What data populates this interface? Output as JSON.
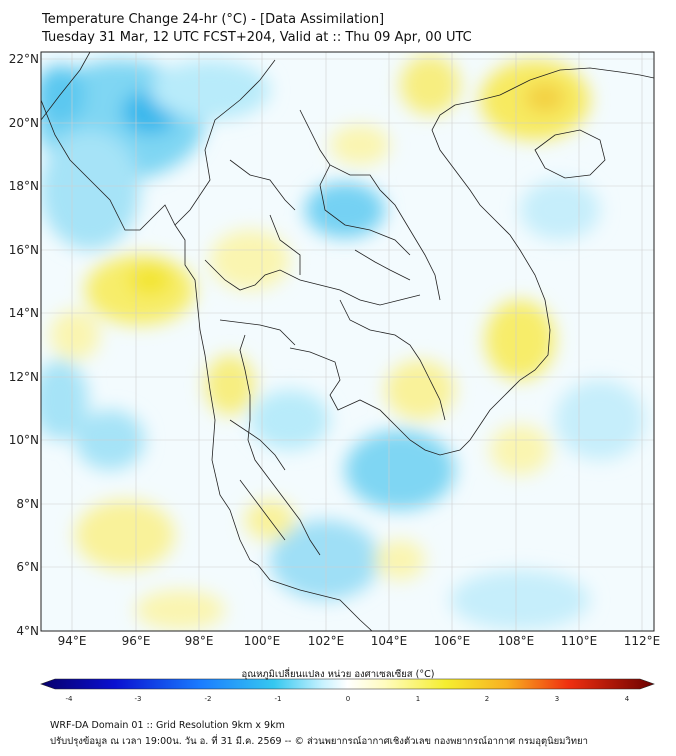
{
  "header": {
    "title_line1": "Temperature Change 24-hr (°C) - [Data Assimilation]",
    "title_line2": "Tuesday 31 Mar, 12 UTC FCST+204, Valid at :: Thu 09 Apr, 00 UTC"
  },
  "axes": {
    "lat_labels": [
      "22°N",
      "20°N",
      "18°N",
      "16°N",
      "14°N",
      "12°N",
      "10°N",
      "8°N",
      "6°N",
      "4°N"
    ],
    "lon_labels": [
      "94°E",
      "96°E",
      "98°E",
      "100°E",
      "102°E",
      "104°E",
      "106°E",
      "108°E",
      "110°E",
      "112°E"
    ]
  },
  "colorbar": {
    "label": "อุณหภูมิเปลี่ยนแปลง หน่วย องศาเซลเซียส (°C)",
    "ticks": [
      "-4",
      "-3",
      "-2",
      "-1",
      "0",
      "1",
      "2",
      "3",
      "4"
    ],
    "colors": {
      "cold_dark": "#08006b",
      "cold": "#1a5cff",
      "cool": "#35c8f0",
      "neutral": "#ffffff",
      "warm": "#f5ee30",
      "hot": "#f07010",
      "hot_dark": "#6b0000"
    }
  },
  "footer": {
    "line1": "WRF-DA Domain 01 :: Grid Resolution 9km x 9km",
    "line2": "ปรับปรุงข้อมูล ณ เวลา 19:00น. วัน อ. ที่ 31 มี.ค. 2569 -- © ส่วนพยากรณ์อากาศเชิงตัวเลข กองพยากรณ์อากาศ กรมอุตุนิยมวิทยา"
  }
}
